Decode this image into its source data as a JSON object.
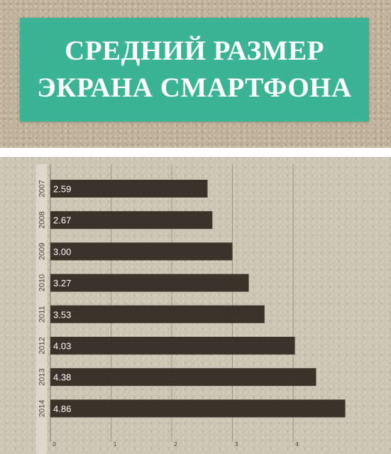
{
  "title": {
    "line1": "СРЕДНИЙ РАЗМЕР",
    "line2": "ЭКРАНА СМАРТФОНА"
  },
  "colors": {
    "title_box": "#3bb495",
    "title_text": "#ffffff",
    "bar": "#3a332a",
    "bar_label": "#ffffff",
    "grid": "#8a8070",
    "year_strip": "#ded7cb",
    "axis_text": "#4a4338"
  },
  "chart_data": {
    "type": "bar",
    "orientation": "horizontal",
    "categories": [
      "2007",
      "2008",
      "2009",
      "2010",
      "2011",
      "2012",
      "2013",
      "2014"
    ],
    "values": [
      2.59,
      2.67,
      3.0,
      3.27,
      3.53,
      4.03,
      4.38,
      4.86
    ],
    "value_labels": [
      "2.59",
      "2.67",
      "3.00",
      "3.27",
      "3.53",
      "4.03",
      "4.38",
      "4.86"
    ],
    "xticks": [
      "0",
      "1",
      "2",
      "3",
      "4"
    ],
    "xlim": [
      0,
      4.86
    ],
    "grid": true
  }
}
